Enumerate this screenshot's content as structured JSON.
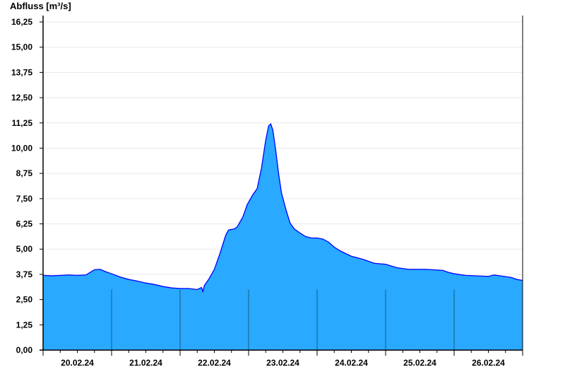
{
  "chart_data": {
    "type": "area",
    "title": "",
    "ylabel": "Abfluss [m³/s]",
    "xlabel": "",
    "ylim": [
      0,
      16.25
    ],
    "yticks": [
      "0,00",
      "1,25",
      "2,50",
      "3,75",
      "5,00",
      "6,25",
      "7,50",
      "8,75",
      "10,00",
      "11,25",
      "12,50",
      "13,75",
      "15,00",
      "16,25"
    ],
    "xlim": [
      "2024-02-20T00:00",
      "2024-02-27T00:00"
    ],
    "xtick_labels": [
      "20.02.24",
      "21.02.24",
      "22.02.24",
      "23.02.24",
      "24.02.24",
      "25.02.24",
      "26.02.24"
    ],
    "grid": true,
    "colors": {
      "fill": "#29a9ff",
      "line": "#0000ff",
      "day_lines": "#1a5c80",
      "grid": "#e8e8e8"
    },
    "points": [
      [
        "2024-02-20T00:00",
        3.7
      ],
      [
        "2024-02-20T03:00",
        3.68
      ],
      [
        "2024-02-20T06:00",
        3.7
      ],
      [
        "2024-02-20T09:00",
        3.72
      ],
      [
        "2024-02-20T12:00",
        3.7
      ],
      [
        "2024-02-20T15:00",
        3.72
      ],
      [
        "2024-02-20T18:00",
        3.98
      ],
      [
        "2024-02-20T20:00",
        4.0
      ],
      [
        "2024-02-20T22:00",
        3.88
      ],
      [
        "2024-02-21T00:00",
        3.78
      ],
      [
        "2024-02-21T03:00",
        3.62
      ],
      [
        "2024-02-21T06:00",
        3.5
      ],
      [
        "2024-02-21T09:00",
        3.42
      ],
      [
        "2024-02-21T12:00",
        3.32
      ],
      [
        "2024-02-21T15:00",
        3.25
      ],
      [
        "2024-02-21T18:00",
        3.15
      ],
      [
        "2024-02-21T21:00",
        3.08
      ],
      [
        "2024-02-22T00:00",
        3.05
      ],
      [
        "2024-02-22T03:00",
        3.05
      ],
      [
        "2024-02-22T06:00",
        3.0
      ],
      [
        "2024-02-22T07:30",
        3.1
      ],
      [
        "2024-02-22T08:00",
        2.9
      ],
      [
        "2024-02-22T08:30",
        3.2
      ],
      [
        "2024-02-22T10:00",
        3.5
      ],
      [
        "2024-02-22T12:00",
        4.0
      ],
      [
        "2024-02-22T14:00",
        4.8
      ],
      [
        "2024-02-22T16:00",
        5.7
      ],
      [
        "2024-02-22T17:00",
        5.95
      ],
      [
        "2024-02-22T19:00",
        6.0
      ],
      [
        "2024-02-22T20:00",
        6.1
      ],
      [
        "2024-02-22T22:00",
        6.6
      ],
      [
        "2024-02-22T23:30",
        7.2
      ],
      [
        "2024-02-23T01:30",
        7.7
      ],
      [
        "2024-02-23T03:00",
        8.0
      ],
      [
        "2024-02-23T04:30",
        9.0
      ],
      [
        "2024-02-23T06:00",
        10.4
      ],
      [
        "2024-02-23T07:00",
        11.1
      ],
      [
        "2024-02-23T07:45",
        11.2
      ],
      [
        "2024-02-23T08:30",
        10.9
      ],
      [
        "2024-02-23T09:30",
        9.9
      ],
      [
        "2024-02-23T10:30",
        8.75
      ],
      [
        "2024-02-23T11:30",
        7.8
      ],
      [
        "2024-02-23T13:00",
        7.0
      ],
      [
        "2024-02-23T14:30",
        6.3
      ],
      [
        "2024-02-23T16:00",
        6.0
      ],
      [
        "2024-02-23T18:00",
        5.8
      ],
      [
        "2024-02-23T20:00",
        5.62
      ],
      [
        "2024-02-23T22:00",
        5.55
      ],
      [
        "2024-02-24T00:00",
        5.55
      ],
      [
        "2024-02-24T02:00",
        5.5
      ],
      [
        "2024-02-24T04:00",
        5.35
      ],
      [
        "2024-02-24T06:00",
        5.1
      ],
      [
        "2024-02-24T08:00",
        4.92
      ],
      [
        "2024-02-24T10:00",
        4.78
      ],
      [
        "2024-02-24T12:00",
        4.65
      ],
      [
        "2024-02-24T16:00",
        4.5
      ],
      [
        "2024-02-24T20:00",
        4.3
      ],
      [
        "2024-02-25T00:00",
        4.25
      ],
      [
        "2024-02-25T04:00",
        4.08
      ],
      [
        "2024-02-25T08:00",
        4.0
      ],
      [
        "2024-02-25T14:00",
        4.0
      ],
      [
        "2024-02-25T20:00",
        3.95
      ],
      [
        "2024-02-25T22:00",
        3.85
      ],
      [
        "2024-02-26T00:00",
        3.78
      ],
      [
        "2024-02-26T04:00",
        3.7
      ],
      [
        "2024-02-26T12:00",
        3.65
      ],
      [
        "2024-02-26T14:00",
        3.72
      ],
      [
        "2024-02-26T20:00",
        3.6
      ],
      [
        "2024-02-26T22:00",
        3.5
      ],
      [
        "2024-02-27T00:00",
        3.45
      ]
    ]
  }
}
